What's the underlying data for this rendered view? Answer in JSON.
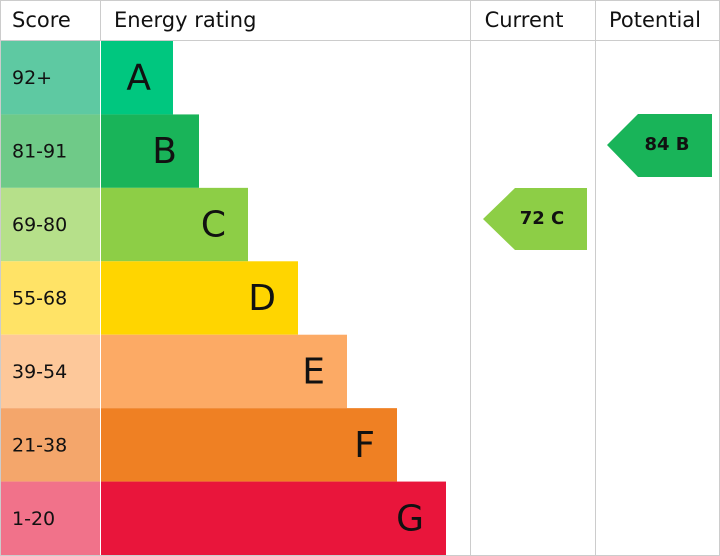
{
  "header": {
    "score": "Score",
    "rating": "Energy rating",
    "current": "Current",
    "potential": "Potential"
  },
  "rows": [
    {
      "score": "92+",
      "letter": "A"
    },
    {
      "score": "81-91",
      "letter": "B"
    },
    {
      "score": "69-80",
      "letter": "C"
    },
    {
      "score": "55-68",
      "letter": "D"
    },
    {
      "score": "39-54",
      "letter": "E"
    },
    {
      "score": "21-38",
      "letter": "F"
    },
    {
      "score": "1-20",
      "letter": "G"
    }
  ],
  "current": "72 C",
  "potential": "84 B"
}
